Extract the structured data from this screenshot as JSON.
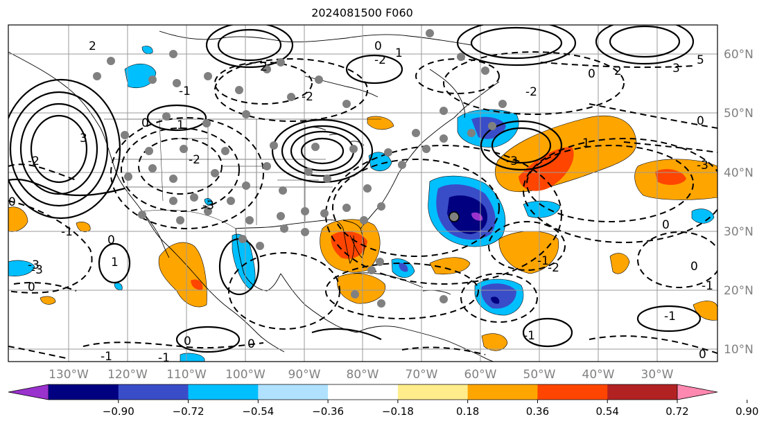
{
  "title": "2024081500 F060",
  "lon_labels": [
    "130°W",
    "120°W",
    "110°W",
    "100°W",
    "90°W",
    "80°W",
    "70°W",
    "60°W",
    "50°W",
    "40°W",
    "30°W"
  ],
  "lat_labels": [
    "60°N",
    "50°N",
    "40°N",
    "30°N",
    "20°N",
    "10°N"
  ],
  "colorbar": {
    "colors": [
      "#9a32cd",
      "#000080",
      "#3a4dc8",
      "#00bfff",
      "#b0e2ff",
      "#ffffff",
      "#ffec8b",
      "#ffa500",
      "#ff4500",
      "#b22222",
      "#ff88b0"
    ],
    "tick_labels": [
      "−0.90",
      "−0.72",
      "−0.54",
      "−0.36",
      "−0.18",
      "0.18",
      "0.36",
      "0.54",
      "0.72",
      "0.90"
    ]
  },
  "contour_labels": [
    "2",
    "2",
    "1",
    "0",
    "-1",
    "-2",
    "3",
    "-3",
    "0",
    "-1",
    "-3",
    "-3",
    "1",
    "0",
    "0",
    "-1",
    "-1",
    "-1",
    "0",
    "-2",
    "0",
    "1",
    "-2",
    "0",
    "0",
    "-2",
    "2",
    "3",
    "5",
    "-1",
    "-3",
    "0",
    "-1",
    "0",
    "1",
    "-1",
    "0",
    "-2",
    "0",
    "-2",
    "-3"
  ]
}
